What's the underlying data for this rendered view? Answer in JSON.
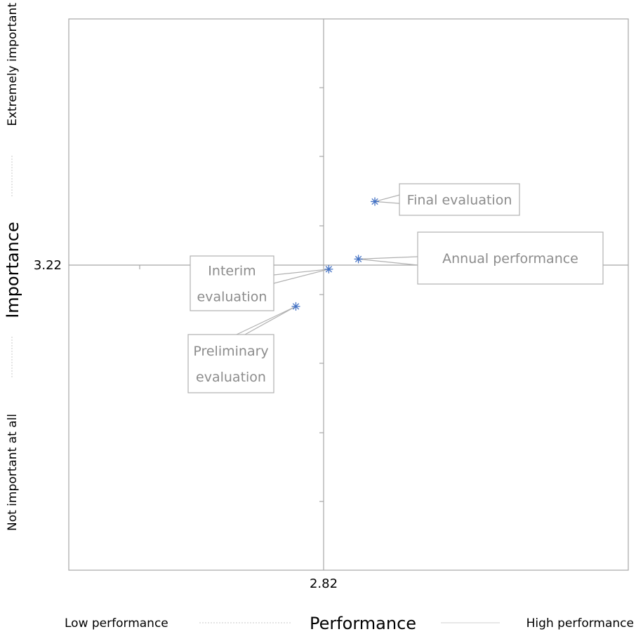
{
  "chart_data": {
    "type": "scatter",
    "title": "",
    "xlabel": "Performance",
    "ylabel": "Importance",
    "x_low_label": "Low performance",
    "x_high_label": "High performance",
    "y_low_label": "Not important at all",
    "y_high_label": "Extremely important",
    "x_mean_label": "2.82",
    "y_mean_label": "3.22",
    "x_mean": 2.82,
    "y_mean": 3.22,
    "xlim": [
      2.0,
      3.7
    ],
    "ylim": [
      2.3,
      3.93
    ],
    "grid": false,
    "marker_color": "#4472c4",
    "points": [
      {
        "label": [
          "Final evaluation"
        ],
        "x": 2.93,
        "y": 3.39
      },
      {
        "label": [
          "Annual performance"
        ],
        "x": 2.88,
        "y": 3.22
      },
      {
        "label": [
          "Interim",
          "evaluation"
        ],
        "x": 2.79,
        "y": 3.19
      },
      {
        "label": [
          "Preliminary",
          "evaluation"
        ],
        "x": 2.69,
        "y": 3.08
      }
    ]
  }
}
